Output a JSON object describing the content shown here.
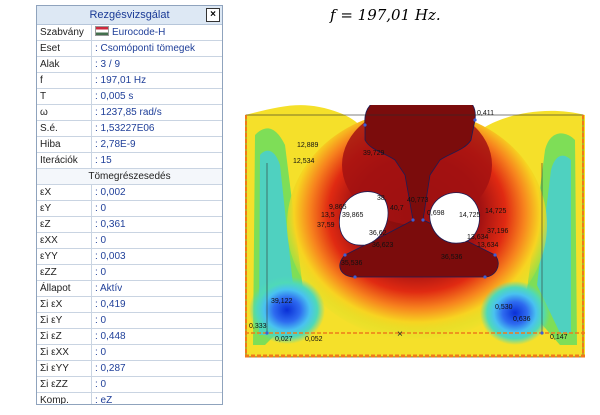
{
  "panel": {
    "title": "Rezgésvizsgálat",
    "close_label": "×",
    "rows": [
      {
        "label": "Szabvány",
        "value": "Eurocode-H",
        "icon": "hungary-flag-icon"
      },
      {
        "label": "Eset",
        "value": ": Csomóponti tömegek"
      },
      {
        "label": "Alak",
        "value": ": 3 / 9"
      },
      {
        "label": "f",
        "value": ": 197,01 Hz"
      },
      {
        "label": "T",
        "value": ": 0,005 s"
      },
      {
        "label": "ω",
        "value": ": 1237,85 rad/s"
      },
      {
        "label": "S.é.",
        "value": ": 1,53227E06"
      },
      {
        "label": "Hiba",
        "value": ": 2,78E-9"
      },
      {
        "label": "Iterációk",
        "value": ": 15"
      }
    ],
    "section_title": "Tömegrészesedés",
    "mass_rows": [
      {
        "label": "εX",
        "value": ": 0,002"
      },
      {
        "label": "εY",
        "value": ": 0"
      },
      {
        "label": "εZ",
        "value": ": 0,361"
      },
      {
        "label": "εXX",
        "value": ": 0"
      },
      {
        "label": "εYY",
        "value": ": 0,003"
      },
      {
        "label": "εZZ",
        "value": ": 0"
      },
      {
        "label": "Állapot",
        "value": ": Aktív"
      },
      {
        "label": "Σi εX",
        "value": ": 0,419"
      },
      {
        "label": "Σi εY",
        "value": ": 0"
      },
      {
        "label": "Σi εZ",
        "value": ": 0,448"
      },
      {
        "label": "Σi εXX",
        "value": ": 0"
      },
      {
        "label": "Σi εYY",
        "value": ": 0,287"
      },
      {
        "label": "Σi εZZ",
        "value": ": 0"
      },
      {
        "label": "Komp.",
        "value": ": eZ"
      }
    ]
  },
  "formula": "f = 197,01 Hz.",
  "plot_labels": {
    "a": "0,411",
    "b": "12,889",
    "c": "12,534",
    "d": "39,729",
    "e": "40,773",
    "f": "38,",
    "g": "9,865",
    "h": "13,5",
    "i": "39,865",
    "j": "37,59",
    "k": "36,62",
    "l": "36,623",
    "m": "35,536",
    "n": "36,536",
    "o": "14,725",
    "p": "14,725",
    "q": "37,196",
    "r": "13,634",
    "s": "13,634",
    "t": "39,122",
    "u": "0,333",
    "v": "0,027",
    "w": "0,052",
    "x": "0,530",
    "y": "0,636",
    "z": "0,147",
    "aa": "40,7",
    "ab": "0,698"
  }
}
